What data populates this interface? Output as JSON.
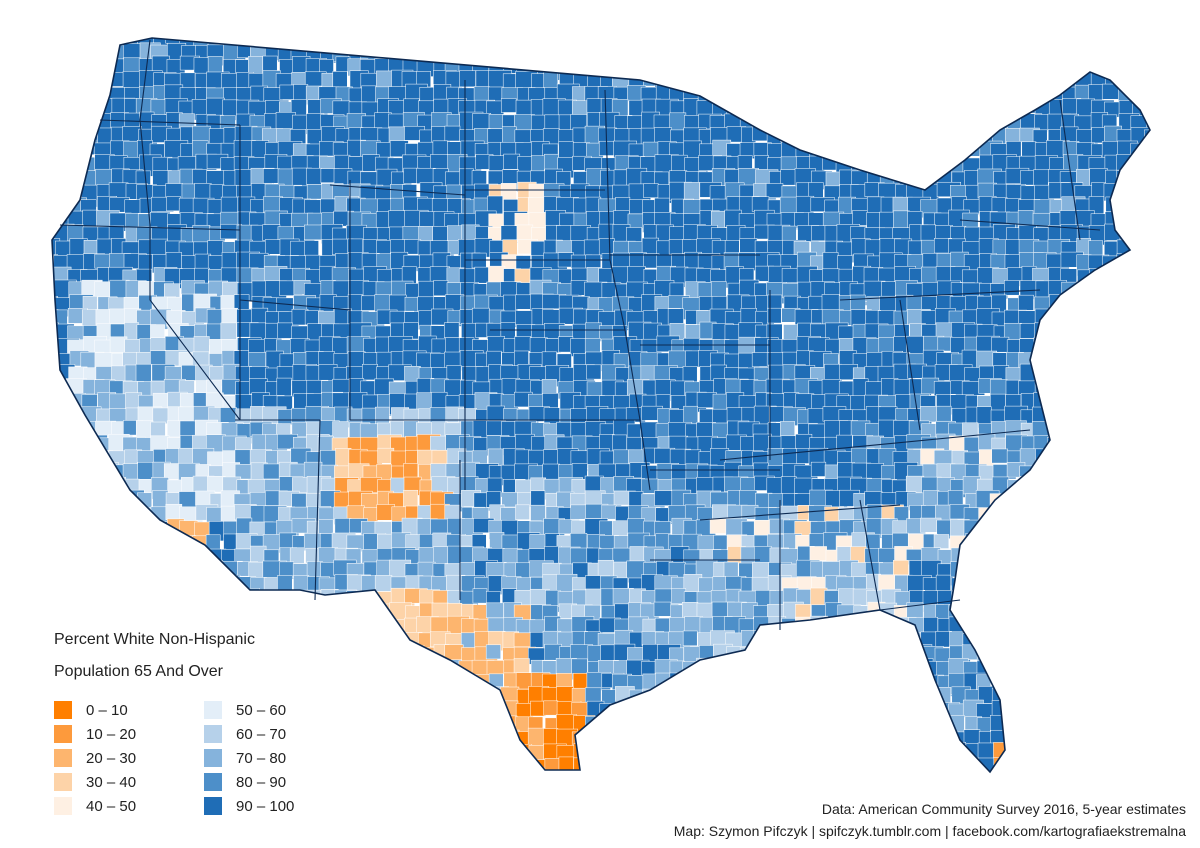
{
  "legend": {
    "title_line1": "Percent White Non-Hispanic",
    "title_line2": "Population 65 And Over",
    "items": [
      {
        "label": "0 – 10",
        "color": "#ff7f00"
      },
      {
        "label": "10 – 20",
        "color": "#fd9a3c"
      },
      {
        "label": "20 – 30",
        "color": "#fdb56e"
      },
      {
        "label": "30 – 40",
        "color": "#fdd3a8"
      },
      {
        "label": "40 – 50",
        "color": "#fef0e3"
      },
      {
        "label": "50 – 60",
        "color": "#e3eef8"
      },
      {
        "label": "60 – 70",
        "color": "#b6d1ea"
      },
      {
        "label": "70 – 80",
        "color": "#85b3dc"
      },
      {
        "label": "80 – 90",
        "color": "#4d8fc9"
      },
      {
        "label": "90 – 100",
        "color": "#1f6db6"
      }
    ]
  },
  "credits": {
    "line1": "Data: American Community Survey 2016, 5-year estimates",
    "line2": "Map: Szymon Pifczyk | spifczyk.tumblr.com | facebook.com/kartografiaekstremalna"
  },
  "colors": {
    "state_border": "#0d2a52",
    "county_border": "#ffffff"
  }
}
